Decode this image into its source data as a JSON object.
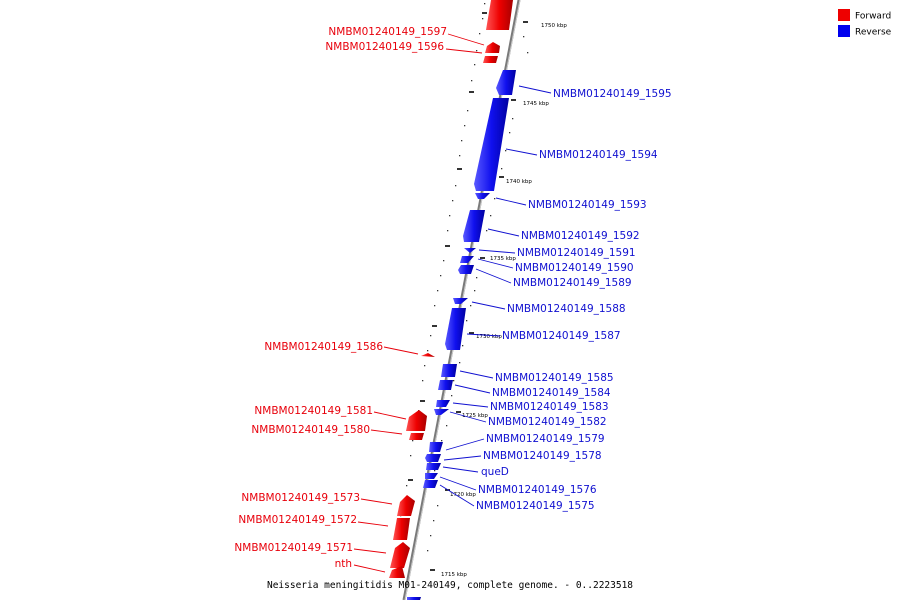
{
  "legend": [
    {
      "label": "Forward",
      "color": "#ee0000"
    },
    {
      "label": "Reverse",
      "color": "#0000ee"
    }
  ],
  "caption": "Neisseria meningitidis M01-240149, complete genome. - 0..2223518",
  "ticks": [
    "1750 kbp",
    "1745 kbp",
    "1740 kbp",
    "1735 kbp",
    "1730 kbp",
    "1725 kbp",
    "1720 kbp",
    "1715 kbp"
  ],
  "genes": {
    "forward": [
      "NMBM01240149_1597",
      "NMBM01240149_1596",
      "NMBM01240149_1586",
      "NMBM01240149_1581",
      "NMBM01240149_1580",
      "NMBM01240149_1573",
      "NMBM01240149_1572",
      "NMBM01240149_1571",
      "nth"
    ],
    "reverse": [
      "NMBM01240149_1595",
      "NMBM01240149_1594",
      "NMBM01240149_1593",
      "NMBM01240149_1592",
      "NMBM01240149_1591",
      "NMBM01240149_1590",
      "NMBM01240149_1589",
      "NMBM01240149_1588",
      "NMBM01240149_1587",
      "NMBM01240149_1585",
      "NMBM01240149_1584",
      "NMBM01240149_1583",
      "NMBM01240149_1582",
      "NMBM01240149_1579",
      "NMBM01240149_1578",
      "queD",
      "NMBM01240149_1576",
      "NMBM01240149_1575"
    ]
  }
}
